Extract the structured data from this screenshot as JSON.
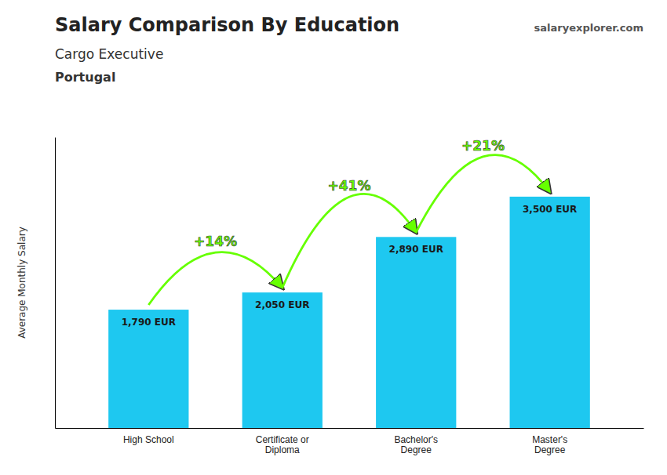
{
  "chart_data": {
    "type": "bar",
    "title": "Salary Comparison By Education",
    "subtitle": "Cargo Executive",
    "annotations": [
      "Portugal",
      "salaryexplorer.com"
    ],
    "y_label": "Average Monthly Salary",
    "categories": [
      "High School",
      "Certificate or\nDiploma",
      "Bachelor's\nDegree",
      "Master's\nDegree"
    ],
    "values": [
      1790,
      2050,
      2890,
      3500
    ],
    "value_labels": [
      "1,790 EUR",
      "2,050 EUR",
      "2,890 EUR",
      "3,500 EUR"
    ],
    "data_labels": true,
    "color": "#1ec8f0",
    "changes": {
      "labels": [
        "+14%",
        "+41%",
        "+21%"
      ],
      "color": "#66ff00"
    },
    "ylim": [
      0,
      4400
    ],
    "tick_labels": "x",
    "grid": false
  }
}
